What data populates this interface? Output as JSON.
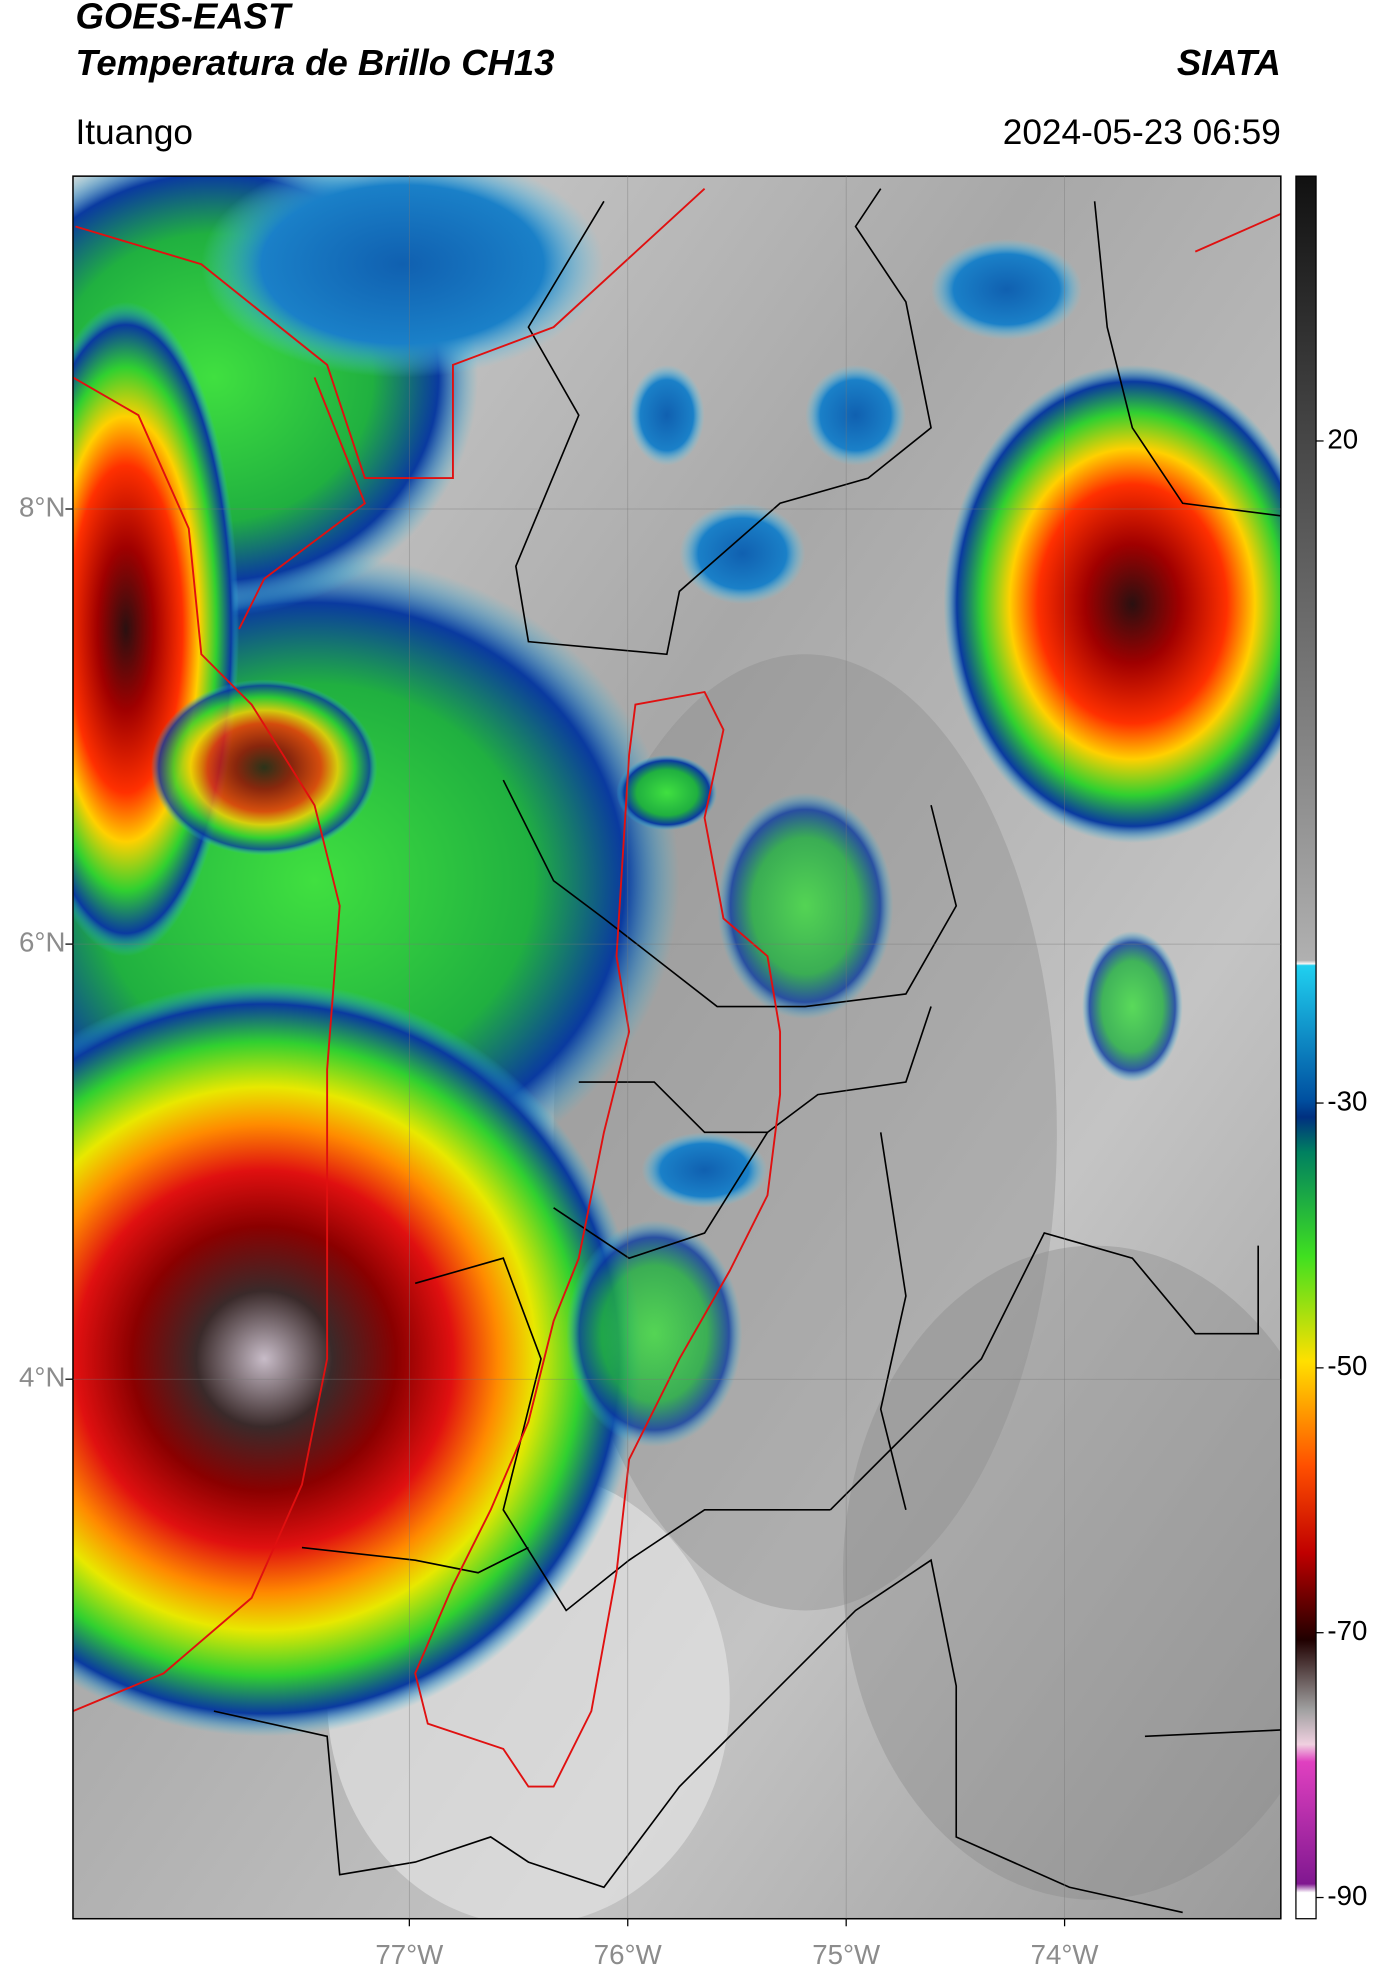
{
  "header": {
    "title": "GOES-EAST",
    "subtitle": "Temperatura de Brillo CH13",
    "organization": "SIATA",
    "location": "Ituango",
    "timestamp": "2024-05-23 06:59"
  },
  "map": {
    "xlim": [
      -78.54,
      -73.01
    ],
    "ylim": [
      1.52,
      9.53
    ],
    "xticks": [
      {
        "value": -77,
        "label": "77°W"
      },
      {
        "value": -76,
        "label": "76°W"
      },
      {
        "value": -75,
        "label": "75°W"
      },
      {
        "value": -74,
        "label": "74°W"
      }
    ],
    "yticks": [
      {
        "value": 8,
        "label": "8°N"
      },
      {
        "value": 6,
        "label": "6°N"
      },
      {
        "value": 4,
        "label": "4°N"
      }
    ]
  },
  "colorbar": {
    "lim": [
      -91.6,
      40
    ],
    "ticks": [
      20,
      -30,
      -50,
      -70,
      -90
    ]
  }
}
